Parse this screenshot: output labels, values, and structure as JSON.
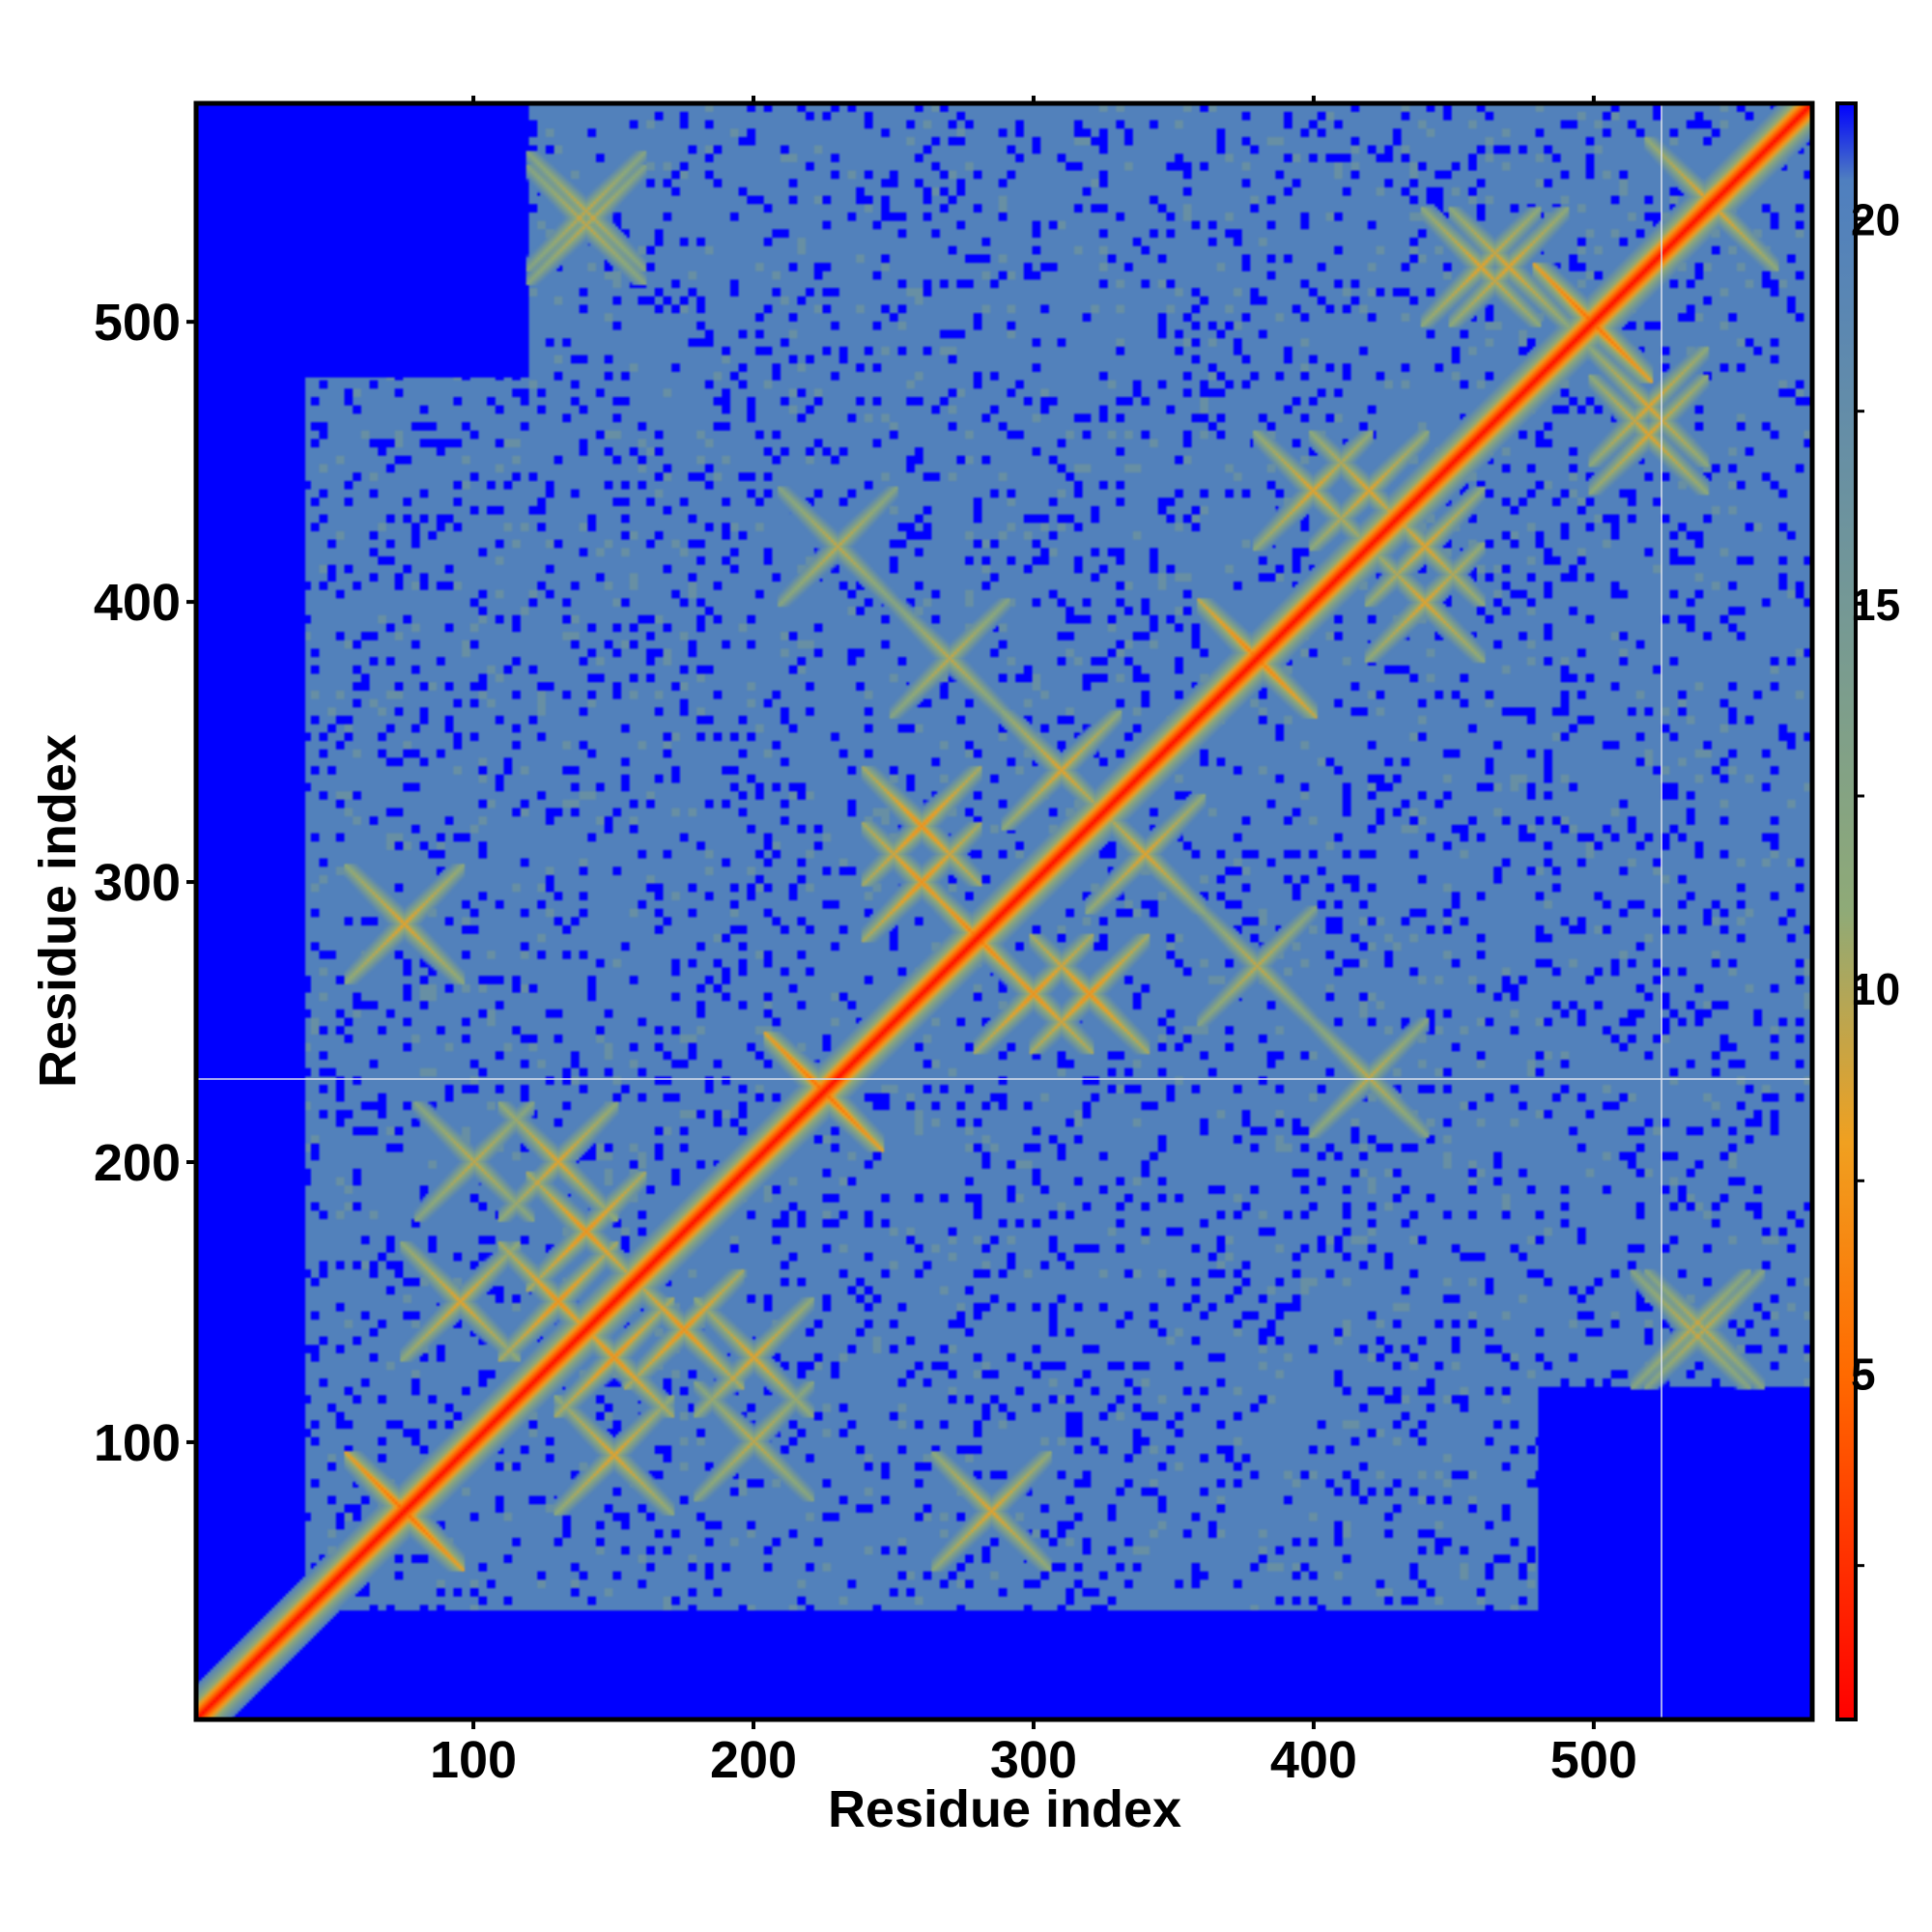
{
  "chart_data": {
    "type": "heatmap",
    "title": "",
    "xlabel": "Residue index",
    "ylabel": "Residue index",
    "xlim": [
      1,
      578
    ],
    "ylim": [
      1,
      578
    ],
    "x_ticks": [
      100,
      200,
      300,
      400,
      500
    ],
    "y_ticks": [
      100,
      200,
      300,
      400,
      500
    ],
    "colorbar": {
      "min": 0.5,
      "max": 21.5,
      "ticks": [
        5,
        10,
        15,
        20
      ],
      "stops": [
        {
          "value": 0.5,
          "color": "#ff0000"
        },
        {
          "value": 5,
          "color": "#ff6a00"
        },
        {
          "value": 8,
          "color": "#f0a020"
        },
        {
          "value": 11,
          "color": "#8faa77"
        },
        {
          "value": 20.5,
          "color": "#4f7fbf"
        },
        {
          "value": 21.5,
          "color": "#0000ff"
        }
      ]
    },
    "background_value": 21.5,
    "plateau_value": 20,
    "matrix_description": "symmetric pairwise residue distance map; small values along diagonal",
    "diagonal_value": 1,
    "domain_blocks": [
      {
        "x": [
          40,
          330
        ],
        "y": [
          40,
          330
        ],
        "value": 20
      },
      {
        "x": [
          40,
          480
        ],
        "y": [
          40,
          300
        ],
        "value": 20
      },
      {
        "x": [
          360,
          578
        ],
        "y": [
          360,
          578
        ],
        "value": 20
      },
      {
        "x": [
          200,
          578
        ],
        "y": [
          230,
          578
        ],
        "value": 20
      },
      {
        "x": [
          460,
          578
        ],
        "y": [
          120,
          230
        ],
        "value": 20
      }
    ],
    "contact_features": [
      {
        "x": 75,
        "y": 75,
        "value": 5
      },
      {
        "x": 225,
        "y": 225,
        "value": 5
      },
      {
        "x": 500,
        "y": 500,
        "value": 5
      },
      {
        "x": 130,
        "y": 150,
        "value": 7
      },
      {
        "x": 175,
        "y": 140,
        "value": 7
      },
      {
        "x": 150,
        "y": 95,
        "value": 8
      },
      {
        "x": 200,
        "y": 130,
        "value": 8
      },
      {
        "x": 280,
        "y": 280,
        "value": 6
      },
      {
        "x": 260,
        "y": 300,
        "value": 7
      },
      {
        "x": 320,
        "y": 260,
        "value": 7
      },
      {
        "x": 340,
        "y": 310,
        "value": 8
      },
      {
        "x": 310,
        "y": 340,
        "value": 8
      },
      {
        "x": 380,
        "y": 380,
        "value": 6
      },
      {
        "x": 420,
        "y": 440,
        "value": 8
      },
      {
        "x": 440,
        "y": 400,
        "value": 8
      },
      {
        "x": 520,
        "y": 460,
        "value": 8
      },
      {
        "x": 470,
        "y": 520,
        "value": 8
      },
      {
        "x": 540,
        "y": 545,
        "value": 8
      },
      {
        "x": 140,
        "y": 535,
        "value": 9
      },
      {
        "x": 230,
        "y": 420,
        "value": 9
      },
      {
        "x": 540,
        "y": 140,
        "value": 9
      },
      {
        "x": 420,
        "y": 230,
        "value": 9
      },
      {
        "x": 75,
        "y": 285,
        "value": 8
      },
      {
        "x": 285,
        "y": 75,
        "value": 8
      },
      {
        "x": 100,
        "y": 200,
        "value": 9
      },
      {
        "x": 380,
        "y": 270,
        "value": 9
      }
    ]
  }
}
